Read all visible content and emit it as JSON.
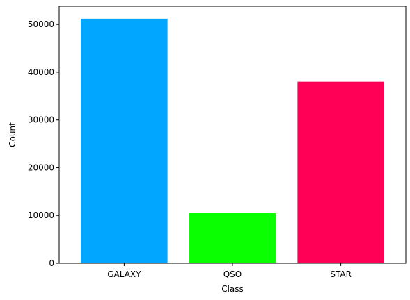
{
  "chart_data": {
    "type": "bar",
    "title": "",
    "xlabel": "Class",
    "ylabel": "Count",
    "categories": [
      "GALAXY",
      "QSO",
      "STAR"
    ],
    "values": [
      51200,
      10500,
      38000
    ],
    "colors": [
      "#00a6ff",
      "#0aff00",
      "#ff0056"
    ],
    "ylim": [
      0,
      53800
    ],
    "yticks": [
      0,
      10000,
      20000,
      30000,
      40000,
      50000
    ],
    "grid": false,
    "legend": "none"
  }
}
